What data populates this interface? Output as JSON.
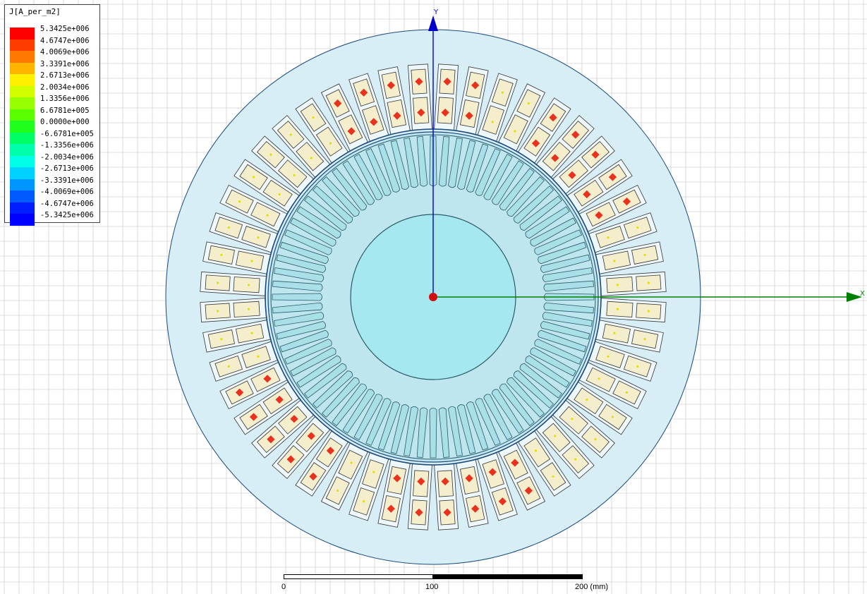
{
  "legend": {
    "title": "J[A_per_m2]",
    "levels": [
      {
        "value": "5.3425e+006",
        "color": "#ff0000"
      },
      {
        "value": "4.6747e+006",
        "color": "#ff3c00"
      },
      {
        "value": "4.0069e+006",
        "color": "#ff7800"
      },
      {
        "value": "3.3391e+006",
        "color": "#ffb400"
      },
      {
        "value": "2.6713e+006",
        "color": "#fff000"
      },
      {
        "value": "2.0034e+006",
        "color": "#d2ff00"
      },
      {
        "value": "1.3356e+006",
        "color": "#96ff00"
      },
      {
        "value": "6.6781e+005",
        "color": "#5aff00"
      },
      {
        "value": "0.0000e+000",
        "color": "#1eff1e"
      },
      {
        "value": "-6.6781e+005",
        "color": "#00ff64"
      },
      {
        "value": "-1.3356e+006",
        "color": "#00ffaa"
      },
      {
        "value": "-2.0034e+006",
        "color": "#00ffe6"
      },
      {
        "value": "-2.6713e+006",
        "color": "#00d2ff"
      },
      {
        "value": "-3.3391e+006",
        "color": "#0096ff"
      },
      {
        "value": "-4.0069e+006",
        "color": "#005aff"
      },
      {
        "value": "-4.6747e+006",
        "color": "#001eff"
      },
      {
        "value": "-5.3425e+006",
        "color": "#0000ff"
      }
    ]
  },
  "axes": {
    "x_label": "X",
    "y_label": "Y",
    "x_color": "#008000",
    "y_color": "#0000cc"
  },
  "scale_bar": {
    "label_0": "0",
    "label_mid": "100",
    "label_end": "200 (mm)"
  },
  "colors": {
    "stator": "#d7eef6",
    "rotor": "#bfe6ee",
    "shaft": "#a6e8f0",
    "coil": "#f4eecd",
    "conductor_hot": "#e8321e",
    "grid": "#d0d0d0"
  },
  "geometry": {
    "stator_slots": 48,
    "rotor_bars": 76
  }
}
